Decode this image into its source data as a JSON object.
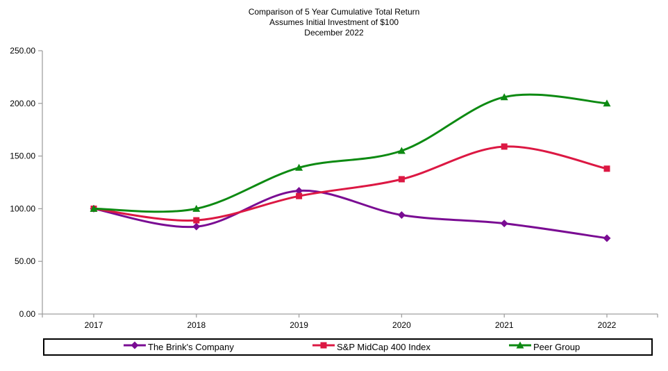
{
  "title": {
    "line1": "Comparison of 5 Year Cumulative Total Return",
    "line2": "Assumes Initial Investment of $100",
    "line3": "December 2022"
  },
  "chart_data": {
    "type": "line",
    "x": [
      "2017",
      "2018",
      "2019",
      "2020",
      "2021",
      "2022"
    ],
    "series": [
      {
        "name": "The Brink's Company",
        "color": "#7A0C93",
        "marker": "diamond",
        "values": [
          100,
          83,
          117,
          94,
          86,
          72
        ]
      },
      {
        "name": "S&P MidCap 400 Index",
        "color": "#DC1843",
        "marker": "square",
        "values": [
          100,
          89,
          112,
          128,
          159,
          138
        ]
      },
      {
        "name": "Peer Group",
        "color": "#0D8A12",
        "marker": "triangle",
        "values": [
          100,
          100,
          139,
          155,
          206,
          200
        ]
      }
    ],
    "ylim": [
      0,
      250
    ],
    "ytick_step": 50,
    "ytick_labels": [
      "0.00",
      "50.00",
      "100.00",
      "150.00",
      "200.00",
      "250.00"
    ],
    "grid": false,
    "smooth": true,
    "legend_position": "bottom"
  },
  "colors": {
    "axis": "#A0A0A0",
    "text": "#000000",
    "background": "#FFFFFF"
  }
}
